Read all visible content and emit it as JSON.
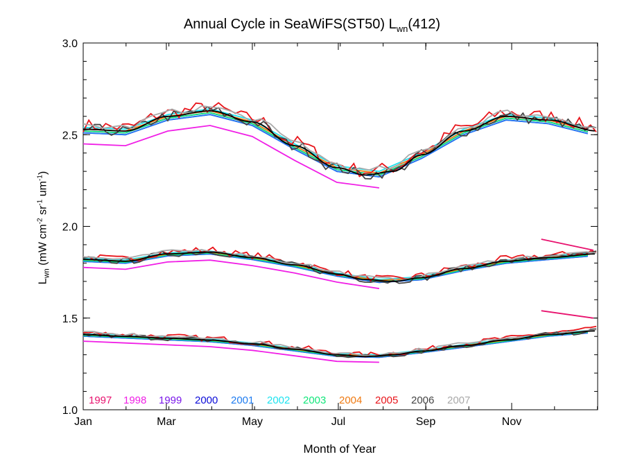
{
  "title": {
    "main": "Annual Cycle in SeaWiFS(ST50) L",
    "sub": "wn",
    "suffix": "(412)"
  },
  "chart_data": {
    "type": "line",
    "xlabel": "Month of Year",
    "ylabel": {
      "main": "L",
      "sub": "wn",
      "units": " (mW cm",
      "p1": "-2",
      "mid": " sr",
      "p2": "-1",
      "mid2": " um",
      "p3": "-1",
      "end": ")"
    },
    "xlim": [
      0,
      365
    ],
    "ylim": [
      1.0,
      3.0
    ],
    "x_ticks": [
      {
        "label": "Jan",
        "x": 0
      },
      {
        "label": "Mar",
        "x": 59
      },
      {
        "label": "May",
        "x": 120
      },
      {
        "label": "Jul",
        "x": 181
      },
      {
        "label": "Sep",
        "x": 243
      },
      {
        "label": "Nov",
        "x": 304
      }
    ],
    "y_ticks": [
      {
        "label": "1.0",
        "y": 1.0
      },
      {
        "label": "1.5",
        "y": 1.5
      },
      {
        "label": "2.0",
        "y": 2.0
      },
      {
        "label": "2.5",
        "y": 2.5
      },
      {
        "label": "3.0",
        "y": 3.0
      }
    ],
    "bands": [
      {
        "name": "upper",
        "x": [
          0,
          30,
          60,
          90,
          120,
          150,
          180,
          200,
          220,
          240,
          270,
          300,
          330,
          365
        ],
        "y": [
          2.53,
          2.52,
          2.6,
          2.63,
          2.57,
          2.44,
          2.32,
          2.28,
          2.3,
          2.39,
          2.52,
          2.6,
          2.58,
          2.52
        ]
      },
      {
        "name": "middle",
        "x": [
          0,
          30,
          60,
          90,
          120,
          150,
          180,
          200,
          220,
          240,
          270,
          300,
          330,
          365
        ],
        "y": [
          1.82,
          1.81,
          1.85,
          1.86,
          1.83,
          1.79,
          1.74,
          1.71,
          1.7,
          1.72,
          1.77,
          1.81,
          1.83,
          1.85
        ]
      },
      {
        "name": "lower",
        "x": [
          0,
          30,
          60,
          90,
          120,
          150,
          180,
          200,
          220,
          240,
          270,
          300,
          330,
          365
        ],
        "y": [
          1.41,
          1.4,
          1.39,
          1.38,
          1.36,
          1.33,
          1.3,
          1.29,
          1.3,
          1.32,
          1.35,
          1.38,
          1.41,
          1.43
        ]
      }
    ],
    "series": [
      {
        "name": "1997",
        "color": "#e8126e",
        "days": [
          275,
          365
        ],
        "offset": 0.02,
        "segments": {
          "upper": null,
          "middle": [
            [
              325,
              1.93
            ],
            [
              362,
              1.87
            ]
          ],
          "lower": [
            [
              325,
              1.54
            ],
            [
              362,
              1.5
            ]
          ]
        }
      },
      {
        "name": "1998",
        "color": "#f01fe6",
        "days": [
          0,
          30,
          60,
          90,
          120,
          150,
          180,
          210
        ],
        "offset": -0.08,
        "noise": 0.0
      },
      {
        "name": "1999",
        "color": "#7a16ea",
        "days": [
          0,
          30,
          60,
          90,
          120,
          150,
          180,
          210,
          240,
          270,
          300,
          330,
          358
        ],
        "offset": -0.02,
        "noise": 0.0
      },
      {
        "name": "2000",
        "color": "#0a0ad8",
        "days": [
          0,
          30,
          60,
          90,
          120,
          150,
          180,
          210,
          240,
          270,
          300,
          330,
          358
        ],
        "offset": -0.01,
        "noise": 0.0
      },
      {
        "name": "2001",
        "color": "#1f7cf0",
        "days": [
          0,
          30,
          60,
          90,
          120,
          150,
          180,
          210,
          240,
          270,
          300,
          330,
          358
        ],
        "offset": -0.02,
        "noise": 0.0
      },
      {
        "name": "2002",
        "color": "#1de3f0",
        "days": [
          0,
          30,
          60,
          90,
          120,
          150,
          180,
          210,
          240,
          270,
          300,
          330,
          358
        ],
        "offset": 0.01,
        "noise": 0.0
      },
      {
        "name": "2003",
        "color": "#11e67a",
        "days": [
          0,
          30,
          60,
          90,
          120,
          150,
          180,
          210,
          240,
          270,
          300,
          330,
          358
        ],
        "offset": -0.01,
        "noise": 0.0
      },
      {
        "name": "2004",
        "color": "#ef7a12",
        "days": [
          0,
          30,
          60,
          90,
          120,
          150,
          180,
          210,
          240,
          270,
          300,
          330,
          358
        ],
        "offset": 0.0,
        "noise": 0.0
      },
      {
        "name": "2005",
        "color": "#e8141a",
        "days": "weekly",
        "offset": 0.02,
        "noise": 0.035
      },
      {
        "name": "2006",
        "color": "#444444",
        "days": "weekly",
        "offset": 0.0,
        "noise": 0.03
      },
      {
        "name": "2007",
        "color": "#a9a9a9",
        "days": "weekly-partial",
        "offset": 0.02,
        "noise": 0.02
      }
    ],
    "fit_color": "#000000",
    "legend_position": "bottom-left"
  }
}
